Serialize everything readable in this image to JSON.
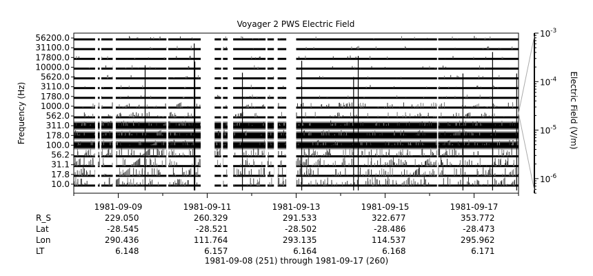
{
  "chart_data": {
    "type": "heatmap",
    "title": "Voyager 2 PWS Electric Field",
    "ylabel": "Frequency (Hz)",
    "colorbar": {
      "label": "Electric Field (V/m)",
      "scale": "log",
      "range": [
        5e-07,
        0.001
      ],
      "tick_labels": [
        "10^-3",
        "10^-4",
        "10^-5",
        "10^-6"
      ],
      "tick_values": [
        0.001,
        0.0001,
        1e-05,
        1e-06
      ]
    },
    "channels_hz": [
      "10.0",
      "17.8",
      "31.1",
      "56.2",
      "100.0",
      "178.0",
      "311.0",
      "562.0",
      "1000.0",
      "1780.0",
      "3110.0",
      "5620.0",
      "10000.0",
      "17800.0",
      "31100.0",
      "56200.0"
    ],
    "x_range": [
      "1981-09-08",
      "1981-09-18"
    ],
    "x_tick_labels": [
      "1981-09-09",
      "1981-09-11",
      "1981-09-13",
      "1981-09-15",
      "1981-09-17"
    ],
    "x_tick_dates": [
      "1981-09-09",
      "1981-09-11",
      "1981-09-13",
      "1981-09-15",
      "1981-09-17"
    ],
    "data_gaps": [
      [
        "1981-09-08T11:30",
        "1981-09-08T13:00"
      ],
      [
        "1981-09-08T14:00",
        "1981-09-08T14:50"
      ],
      [
        "1981-09-08T21:00",
        "1981-09-08T22:40"
      ],
      [
        "1981-09-10T02:00",
        "1981-09-10T03:00"
      ],
      [
        "1981-09-10T20:30",
        "1981-09-11T04:00"
      ],
      [
        "1981-09-11T07:30",
        "1981-09-11T08:30"
      ],
      [
        "1981-09-11T11:00",
        "1981-09-11T14:00"
      ],
      [
        "1981-09-12T07:30",
        "1981-09-12T08:30"
      ],
      [
        "1981-09-12T12:00",
        "1981-09-12T14:00"
      ],
      [
        "1981-09-12T18:40",
        "1981-09-13T00:00"
      ],
      [
        "1981-09-16T04:00",
        "1981-09-16T04:40"
      ]
    ],
    "ephemeris": {
      "labels": [
        "R_S",
        "Lat",
        "Lon",
        "LT"
      ],
      "rows": [
        [
          "229.050",
          "260.329",
          "291.533",
          "322.677",
          "353.772"
        ],
        [
          "-28.545",
          "-28.521",
          "-28.502",
          "-28.486",
          "-28.473"
        ],
        [
          "290.436",
          "111.764",
          "293.135",
          "114.537",
          "295.962"
        ],
        [
          "6.148",
          "6.157",
          "6.164",
          "6.168",
          "6.171"
        ]
      ]
    },
    "footer": "1981-09-08 (251) through 1981-09-17 (260)"
  }
}
